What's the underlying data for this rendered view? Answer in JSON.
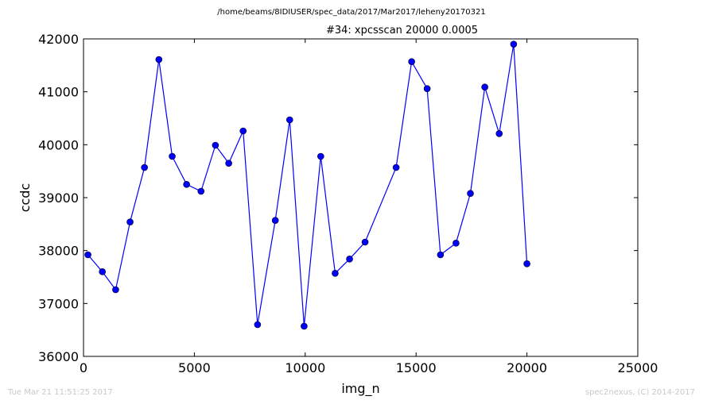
{
  "suptitle": "/home/beams/8IDIUSER/spec_data/2017/Mar2017/leheny20170321",
  "footer": {
    "timestamp": "Tue Mar 21 11:51:25 2017",
    "credit": "spec2nexus, (C) 2014-2017"
  },
  "chart_data": {
    "type": "line",
    "title": "#34: xpcsscan 20000 0.0005",
    "xlabel": "img_n",
    "ylabel": "ccdc",
    "xlim": [
      0,
      25000
    ],
    "ylim": [
      36000,
      42000
    ],
    "xticks": [
      "0",
      "5000",
      "10000",
      "15000",
      "20000",
      "25000"
    ],
    "yticks": [
      "36000",
      "37000",
      "38000",
      "39000",
      "40000",
      "41000",
      "42000"
    ],
    "grid": false,
    "color": "#0000ff",
    "x": [
      200,
      850,
      1450,
      2100,
      2750,
      3400,
      4000,
      4650,
      5300,
      5950,
      6550,
      7200,
      7850,
      8650,
      9300,
      9950,
      10700,
      11350,
      12000,
      12700,
      14100,
      14800,
      15500,
      16100,
      16800,
      17450,
      18100,
      18750,
      19400,
      20000
    ],
    "values": [
      37920,
      37600,
      37260,
      38540,
      39570,
      41610,
      39780,
      39250,
      39120,
      39990,
      39650,
      40260,
      36600,
      38570,
      40470,
      36570,
      39780,
      37570,
      37840,
      38160,
      39570,
      41570,
      41060,
      37920,
      38140,
      39080,
      41090,
      40210,
      41900,
      37750
    ]
  }
}
